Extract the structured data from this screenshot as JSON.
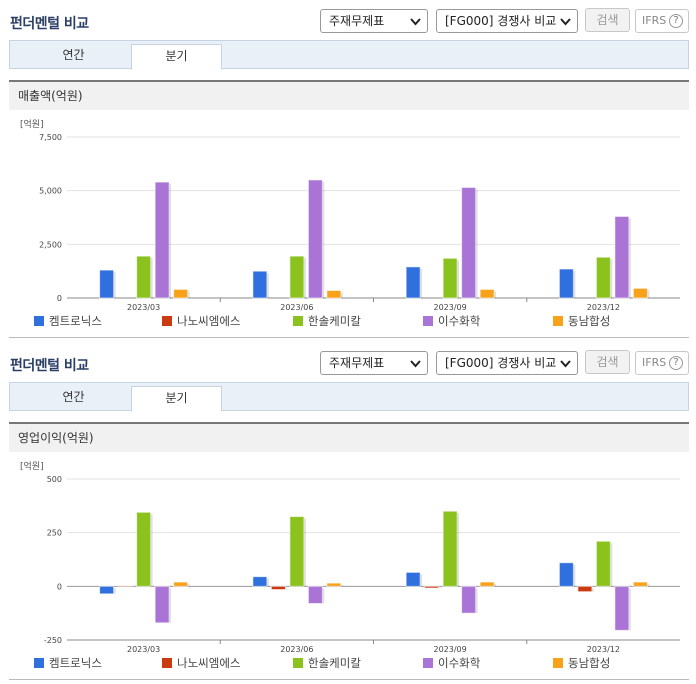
{
  "sections": [
    {
      "title": "펀더멘털 비교",
      "select_report": "주재무제표",
      "select_compare": "[FG000] 경쟁사 비교",
      "search_label": "검색",
      "ifrs_label": "IFRS",
      "help_glyph": "?",
      "tabs": [
        "연간",
        "분기"
      ],
      "active_tab": "분기",
      "panel_title": "매출액(억원)",
      "unit_label": "[억원]"
    },
    {
      "title": "펀더멘털 비교",
      "select_report": "주재무제표",
      "select_compare": "[FG000] 경쟁사 비교",
      "search_label": "검색",
      "ifrs_label": "IFRS",
      "help_glyph": "?",
      "tabs": [
        "연간",
        "분기"
      ],
      "active_tab": "분기",
      "panel_title": "영업이익(억원)",
      "unit_label": "[억원]"
    }
  ],
  "colors": {
    "켐트로닉스": "#2f6fde",
    "나노씨엠에스": "#cc3a12",
    "한솔케미칼": "#8cc21d",
    "이수화학": "#a974d6",
    "동남합성": "#f7a21a"
  },
  "chart_data": [
    {
      "type": "bar",
      "categories": [
        "2023/03",
        "2023/06",
        "2023/09",
        "2023/12"
      ],
      "yticks": [
        "0",
        "2,500",
        "5,000",
        "7,500"
      ],
      "ylim": [
        0,
        7500
      ],
      "grid": true,
      "legend_position": "bottom",
      "series": [
        {
          "name": "켐트로닉스",
          "values": [
            1300,
            1250,
            1450,
            1350
          ]
        },
        {
          "name": "나노씨엠에스",
          "values": [
            0,
            0,
            0,
            0
          ]
        },
        {
          "name": "한솔케미칼",
          "values": [
            1950,
            1950,
            1850,
            1900
          ]
        },
        {
          "name": "이수화학",
          "values": [
            5400,
            5500,
            5150,
            3800
          ]
        },
        {
          "name": "동남합성",
          "values": [
            400,
            350,
            400,
            450
          ]
        }
      ]
    },
    {
      "type": "bar",
      "categories": [
        "2023/03",
        "2023/06",
        "2023/09",
        "2023/12"
      ],
      "yticks": [
        "-250",
        "0",
        "250",
        "500"
      ],
      "ylim": [
        -250,
        500
      ],
      "grid": true,
      "legend_position": "bottom",
      "series": [
        {
          "name": "켐트로닉스",
          "values": [
            -35,
            45,
            65,
            110
          ]
        },
        {
          "name": "나노씨엠에스",
          "values": [
            -3,
            -15,
            -8,
            -25
          ]
        },
        {
          "name": "한솔케미칼",
          "values": [
            345,
            325,
            350,
            210
          ]
        },
        {
          "name": "이수화학",
          "values": [
            -170,
            -80,
            -125,
            -205
          ]
        },
        {
          "name": "동남합성",
          "values": [
            20,
            15,
            20,
            20
          ]
        }
      ]
    }
  ]
}
